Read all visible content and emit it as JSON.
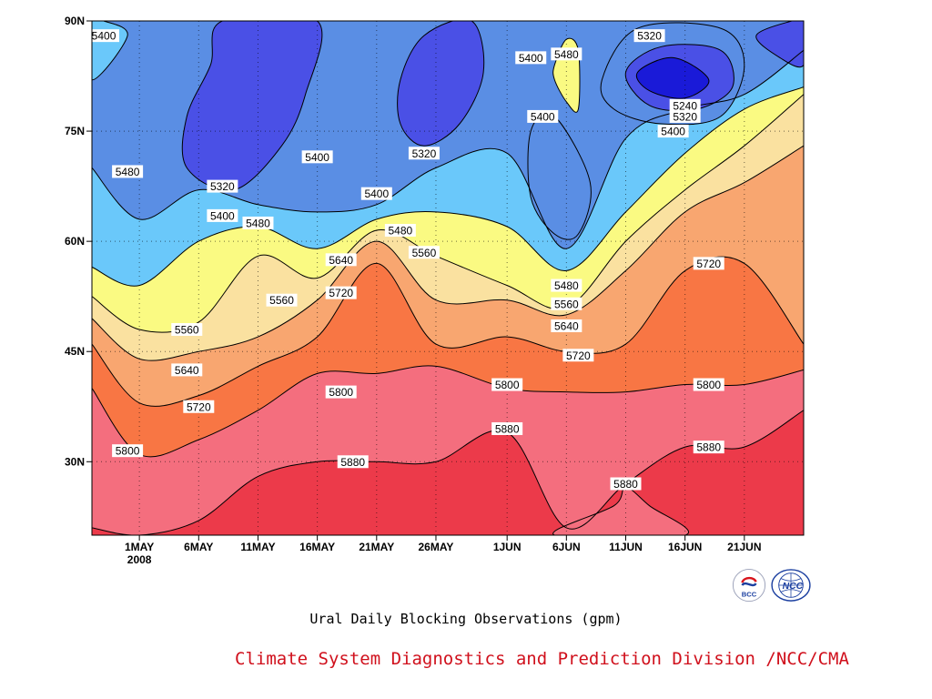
{
  "title": "Ural Daily Blocking Observations (gpm)",
  "credit": "Climate System Diagnostics and Prediction Division /NCC/CMA",
  "logos": [
    {
      "name": "bcc-logo",
      "text": "BCC",
      "color": "#1b3fa0",
      "accent": "#d8141c"
    },
    {
      "name": "ncc-logo",
      "text": "NCC",
      "color": "#1b3fa0"
    }
  ],
  "chart_data": {
    "type": "contour",
    "x_unit": "date (2008)",
    "y_unit": "latitude (degrees N)",
    "xlim": [
      "2008-04-27",
      "2008-06-26"
    ],
    "ylim": [
      20,
      90
    ],
    "x_ticks": [
      {
        "date": "2008-05-01",
        "label": "1MAY",
        "sublabel": "2008"
      },
      {
        "date": "2008-05-06",
        "label": "6MAY"
      },
      {
        "date": "2008-05-11",
        "label": "11MAY"
      },
      {
        "date": "2008-05-16",
        "label": "16MAY"
      },
      {
        "date": "2008-05-21",
        "label": "21MAY"
      },
      {
        "date": "2008-05-26",
        "label": "26MAY"
      },
      {
        "date": "2008-06-01",
        "label": "1JUN"
      },
      {
        "date": "2008-06-06",
        "label": "6JUN"
      },
      {
        "date": "2008-06-11",
        "label": "11JUN"
      },
      {
        "date": "2008-06-16",
        "label": "16JUN"
      },
      {
        "date": "2008-06-21",
        "label": "21JUN"
      }
    ],
    "y_ticks": [
      {
        "value": 30,
        "label": "30N"
      },
      {
        "value": 45,
        "label": "45N"
      },
      {
        "value": 60,
        "label": "60N"
      },
      {
        "value": 75,
        "label": "75N"
      },
      {
        "value": 90,
        "label": "90N"
      }
    ],
    "grid": true,
    "levels": [
      5240,
      5320,
      5400,
      5480,
      5560,
      5640,
      5720,
      5800,
      5880
    ],
    "fill_colors": {
      "5240": "#1a1ad8",
      "5320": "#4a50e6",
      "5400": "#5a8ee4",
      "5480": "#6ac8fa",
      "5560": "#fafa82",
      "5640": "#fae1a0",
      "5720": "#f8a670",
      "5800": "#f87644",
      "5880": "#f46e7e",
      "5960": "#ec3a4a"
    },
    "contours_by_date": [
      {
        "date": "2008-04-27",
        "5880": 21,
        "5800": 40,
        "5720": 46,
        "5640": 49.5,
        "5560": 52.5,
        "5480": 56.5,
        "5400": 70
      },
      {
        "date": "2008-05-01",
        "5880": 20,
        "5800": 31,
        "5720": 38,
        "5640": 44,
        "5560": 48,
        "5480": 54,
        "5400": 63
      },
      {
        "date": "2008-05-06",
        "5880": 22,
        "5800": 33,
        "5720": 39,
        "5640": 45,
        "5560": 49,
        "5480": 60,
        "5400": 67
      },
      {
        "date": "2008-05-11",
        "5880": 28,
        "5800": 37,
        "5720": 43,
        "5640": 47,
        "5560": 58,
        "5480": 62,
        "5400": 65
      },
      {
        "date": "2008-05-16",
        "5880": 30,
        "5800": 42,
        "5720": 47,
        "5640": 52,
        "5560": 55,
        "5480": 59,
        "5400": 64
      },
      {
        "date": "2008-05-21",
        "5880": 30,
        "5800": 42,
        "5720": 57,
        "5640": 60,
        "5560": 61.5,
        "5480": 63,
        "5400": 65
      },
      {
        "date": "2008-05-26",
        "5880": 30,
        "5800": 43,
        "5720": 46,
        "5640": 52,
        "5560": 58,
        "5480": 64,
        "5400": 70
      },
      {
        "date": "2008-06-01",
        "5880": 34,
        "5800": 40,
        "5720": 47,
        "5640": 52,
        "5560": 54,
        "5480": 62,
        "5400": 72
      },
      {
        "date": "2008-06-06",
        "5880": 21,
        "5800": 39.5,
        "5720": 45,
        "5640": 50,
        "5560": 51,
        "5480": 56,
        "5400": 59
      },
      {
        "date": "2008-06-11",
        "5880": 27,
        "5800": 39.5,
        "5720": 46,
        "5640": 56,
        "5560": 60,
        "5480": 64,
        "5400": 74
      },
      {
        "date": "2008-06-16",
        "5880": 32,
        "5800": 40.5,
        "5720": 56,
        "5640": 64,
        "5560": 67,
        "5480": 72,
        "5400": 78
      },
      {
        "date": "2008-06-21",
        "5880": 32,
        "5800": 40.5,
        "5720": 57,
        "5640": 68,
        "5560": 73,
        "5480": 78,
        "5400": 80
      },
      {
        "date": "2008-06-26",
        "5880": 37,
        "5800": 42.5,
        "5720": 46,
        "5640": 73,
        "5560": 80,
        "5480": 81,
        "5400": 86
      }
    ],
    "closed_regions": [
      {
        "level": 5320,
        "points": [
          [
            "2008-05-05",
            77
          ],
          [
            "2008-05-07",
            84
          ],
          [
            "2008-05-08",
            90
          ],
          [
            "2008-05-16",
            90
          ],
          [
            "2008-05-15",
            80
          ],
          [
            "2008-05-13",
            73
          ],
          [
            "2008-05-09",
            67
          ],
          [
            "2008-05-05",
            70
          ]
        ]
      },
      {
        "level": 5320,
        "points": [
          [
            "2008-05-23",
            82
          ],
          [
            "2008-05-25",
            88
          ],
          [
            "2008-05-29",
            90
          ],
          [
            "2008-05-30",
            83
          ],
          [
            "2008-05-28",
            76
          ],
          [
            "2008-05-25",
            73
          ],
          [
            "2008-05-23",
            76
          ]
        ]
      },
      {
        "level": 5400,
        "points": [
          [
            "2008-06-03",
            75
          ],
          [
            "2008-06-05",
            77
          ],
          [
            "2008-06-08",
            68
          ],
          [
            "2008-06-07",
            61
          ],
          [
            "2008-06-05",
            61
          ],
          [
            "2008-06-03",
            66
          ]
        ]
      },
      {
        "level": 5480,
        "points": [
          [
            "2008-06-05",
            84
          ],
          [
            "2008-06-06",
            87.5
          ],
          [
            "2008-06-07",
            86
          ],
          [
            "2008-06-07",
            78
          ],
          [
            "2008-06-06",
            79
          ],
          [
            "2008-06-05",
            82
          ]
        ]
      },
      {
        "level": 5400,
        "points": [
          [
            "2008-06-09",
            82
          ],
          [
            "2008-06-12",
            89
          ],
          [
            "2008-06-19",
            89
          ],
          [
            "2008-06-21",
            84
          ],
          [
            "2008-06-19",
            77
          ],
          [
            "2008-06-14",
            76
          ],
          [
            "2008-06-10",
            78
          ]
        ]
      },
      {
        "level": 5320,
        "points": [
          [
            "2008-06-11",
            83
          ],
          [
            "2008-06-14",
            86.5
          ],
          [
            "2008-06-19",
            86
          ],
          [
            "2008-06-20",
            81
          ],
          [
            "2008-06-17",
            78
          ],
          [
            "2008-06-13",
            78.5
          ]
        ]
      },
      {
        "level": 5240,
        "points": [
          [
            "2008-06-12",
            83
          ],
          [
            "2008-06-15",
            85
          ],
          [
            "2008-06-18",
            82
          ],
          [
            "2008-06-16",
            79.5
          ],
          [
            "2008-06-13",
            80.5
          ]
        ]
      },
      {
        "level": 5320,
        "points": [
          [
            "2008-06-22",
            88
          ],
          [
            "2008-06-25",
            90
          ],
          [
            "2008-06-26",
            90
          ],
          [
            "2008-06-26",
            84
          ],
          [
            "2008-06-24",
            85
          ]
        ]
      },
      {
        "level": 5400,
        "points": [
          [
            "2008-04-27",
            82
          ],
          [
            "2008-04-30",
            88
          ],
          [
            "2008-04-28",
            90
          ],
          [
            "2008-04-27",
            90
          ]
        ]
      },
      {
        "level": 5800,
        "points": [
          [
            "2008-06-05",
            20
          ],
          [
            "2008-06-10",
            24
          ],
          [
            "2008-06-11",
            26.5
          ],
          [
            "2008-06-13",
            24
          ],
          [
            "2008-06-16",
            20
          ]
        ]
      }
    ],
    "contour_labels": [
      {
        "value": "5400",
        "date": "2008-04-28",
        "lat": 88
      },
      {
        "value": "5480",
        "date": "2008-04-30",
        "lat": 69.5
      },
      {
        "value": "5320",
        "date": "2008-05-08",
        "lat": 67.5
      },
      {
        "value": "5400",
        "date": "2008-05-08",
        "lat": 63.5
      },
      {
        "value": "5480",
        "date": "2008-05-11",
        "lat": 62.5
      },
      {
        "value": "5400",
        "date": "2008-05-16",
        "lat": 71.5
      },
      {
        "value": "5400",
        "date": "2008-05-21",
        "lat": 66.5
      },
      {
        "value": "5320",
        "date": "2008-05-25",
        "lat": 72
      },
      {
        "value": "5480",
        "date": "2008-05-23",
        "lat": 61.5
      },
      {
        "value": "5560",
        "date": "2008-05-25",
        "lat": 58.5
      },
      {
        "value": "5640",
        "date": "2008-05-18",
        "lat": 57.5
      },
      {
        "value": "5720",
        "date": "2008-05-18",
        "lat": 53
      },
      {
        "value": "5560",
        "date": "2008-05-13",
        "lat": 52
      },
      {
        "value": "5560",
        "date": "2008-05-05",
        "lat": 48
      },
      {
        "value": "5640",
        "date": "2008-05-05",
        "lat": 42.5
      },
      {
        "value": "5720",
        "date": "2008-05-06",
        "lat": 37.5
      },
      {
        "value": "5800",
        "date": "2008-04-30",
        "lat": 31.5
      },
      {
        "value": "5800",
        "date": "2008-05-18",
        "lat": 39.5
      },
      {
        "value": "5880",
        "date": "2008-05-19",
        "lat": 30
      },
      {
        "value": "5800",
        "date": "2008-06-01",
        "lat": 40.5
      },
      {
        "value": "5880",
        "date": "2008-06-01",
        "lat": 34.5
      },
      {
        "value": "5400",
        "date": "2008-06-03",
        "lat": 85
      },
      {
        "value": "5480",
        "date": "2008-06-06",
        "lat": 85.5
      },
      {
        "value": "5400",
        "date": "2008-06-04",
        "lat": 77
      },
      {
        "value": "5320",
        "date": "2008-06-13",
        "lat": 88
      },
      {
        "value": "5240",
        "date": "2008-06-16",
        "lat": 78.5
      },
      {
        "value": "5320",
        "date": "2008-06-16",
        "lat": 77
      },
      {
        "value": "5400",
        "date": "2008-06-15",
        "lat": 75
      },
      {
        "value": "5480",
        "date": "2008-06-06",
        "lat": 54
      },
      {
        "value": "5560",
        "date": "2008-06-06",
        "lat": 51.5
      },
      {
        "value": "5640",
        "date": "2008-06-06",
        "lat": 48.5
      },
      {
        "value": "5720",
        "date": "2008-06-07",
        "lat": 44.5
      },
      {
        "value": "5800",
        "date": "2008-06-18",
        "lat": 40.5
      },
      {
        "value": "5880",
        "date": "2008-06-18",
        "lat": 32
      },
      {
        "value": "5880",
        "date": "2008-06-11",
        "lat": 27
      },
      {
        "value": "5720",
        "date": "2008-06-18",
        "lat": 57
      }
    ]
  }
}
